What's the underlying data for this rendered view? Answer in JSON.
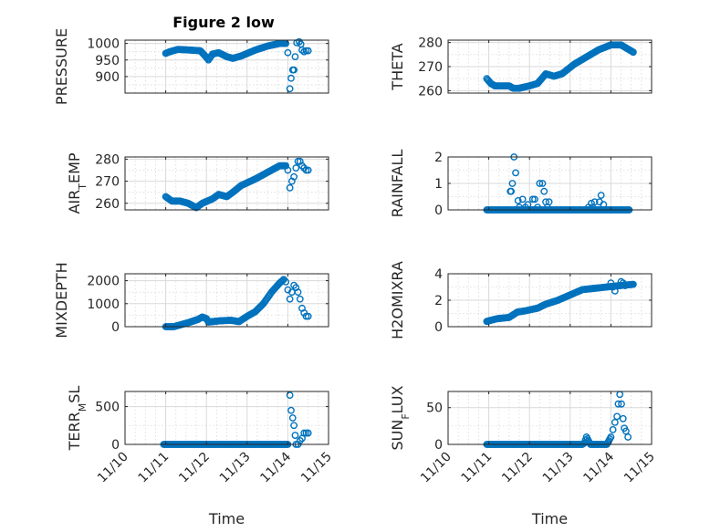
{
  "figure": {
    "title": "Figure 2 low",
    "marker_color": "#0072BD",
    "x_axis": {
      "label": "Time",
      "tick_values": [
        0,
        1,
        2,
        3,
        4,
        5
      ],
      "tick_labels": [
        "11/10",
        "11/11",
        "11/12",
        "11/13",
        "11/14",
        "11/15"
      ],
      "xlim": [
        0,
        5
      ]
    }
  },
  "chart_data": [
    {
      "type": "scatter",
      "ylabel": "PRESSURE",
      "ylim": [
        850,
        1010
      ],
      "yticks": [
        900,
        950,
        1000
      ],
      "yticklabels": [
        "900",
        "950",
        "1000"
      ],
      "minor_y": [
        875,
        925,
        975
      ],
      "anchors": [
        [
          1.0,
          970
        ],
        [
          1.1,
          975
        ],
        [
          1.3,
          982
        ],
        [
          1.6,
          980
        ],
        [
          1.85,
          978
        ],
        [
          2.0,
          958
        ],
        [
          2.05,
          950
        ],
        [
          2.15,
          968
        ],
        [
          2.3,
          972
        ],
        [
          2.5,
          960
        ],
        [
          2.65,
          955
        ],
        [
          2.85,
          962
        ],
        [
          3.2,
          980
        ],
        [
          3.5,
          992
        ],
        [
          3.8,
          1000
        ],
        [
          3.95,
          1000
        ]
      ],
      "extra_points": [
        [
          4.0,
          972
        ],
        [
          4.05,
          863
        ],
        [
          4.08,
          895
        ],
        [
          4.12,
          920
        ],
        [
          4.15,
          920
        ],
        [
          4.18,
          960
        ],
        [
          4.22,
          1002
        ],
        [
          4.28,
          1005
        ],
        [
          4.32,
          998
        ],
        [
          4.35,
          980
        ],
        [
          4.4,
          975
        ],
        [
          4.45,
          978
        ],
        [
          4.5,
          978
        ]
      ]
    },
    {
      "type": "scatter",
      "ylabel": "THETA",
      "ylim": [
        259,
        281
      ],
      "yticks": [
        260,
        270,
        280
      ],
      "yticklabels": [
        "260",
        "270",
        "280"
      ],
      "minor_y": [
        265,
        275
      ],
      "anchors": [
        [
          0.95,
          265
        ],
        [
          1.05,
          263
        ],
        [
          1.15,
          262
        ],
        [
          1.5,
          262
        ],
        [
          1.6,
          261
        ],
        [
          1.75,
          261
        ],
        [
          2.0,
          262
        ],
        [
          2.2,
          263
        ],
        [
          2.3,
          265
        ],
        [
          2.4,
          267
        ],
        [
          2.6,
          266
        ],
        [
          2.8,
          267
        ],
        [
          3.1,
          271
        ],
        [
          3.4,
          274
        ],
        [
          3.7,
          277
        ],
        [
          4.0,
          279
        ],
        [
          4.25,
          279
        ],
        [
          4.35,
          278
        ],
        [
          4.55,
          276
        ]
      ],
      "extra_points": []
    },
    {
      "type": "scatter",
      "ylabel": "AIR_TEMP",
      "ylim": [
        257,
        281
      ],
      "yticks": [
        260,
        270,
        280
      ],
      "yticklabels": [
        "260",
        "270",
        "280"
      ],
      "minor_y": [
        265,
        275
      ],
      "anchors": [
        [
          1.0,
          263
        ],
        [
          1.15,
          261
        ],
        [
          1.35,
          261
        ],
        [
          1.55,
          260
        ],
        [
          1.75,
          258
        ],
        [
          1.9,
          260
        ],
        [
          2.15,
          262
        ],
        [
          2.3,
          264
        ],
        [
          2.5,
          263
        ],
        [
          2.65,
          265
        ],
        [
          2.85,
          268
        ],
        [
          3.2,
          271
        ],
        [
          3.5,
          274
        ],
        [
          3.8,
          277
        ],
        [
          3.95,
          277
        ]
      ],
      "extra_points": [
        [
          4.0,
          275
        ],
        [
          4.05,
          267
        ],
        [
          4.1,
          270
        ],
        [
          4.15,
          272
        ],
        [
          4.2,
          276
        ],
        [
          4.25,
          279
        ],
        [
          4.3,
          279
        ],
        [
          4.35,
          277
        ],
        [
          4.4,
          276
        ],
        [
          4.45,
          275
        ],
        [
          4.5,
          275
        ]
      ]
    },
    {
      "type": "scatter",
      "ylabel": "RAINFALL",
      "ylim": [
        0,
        2
      ],
      "yticks": [
        0,
        1,
        2
      ],
      "yticklabels": [
        "0",
        "1",
        "2"
      ],
      "minor_y": [
        0.5,
        1.5
      ],
      "anchors": [
        [
          0.95,
          0
        ],
        [
          4.45,
          0
        ]
      ],
      "extra_points": [
        [
          1.53,
          0.7
        ],
        [
          1.55,
          0.7
        ],
        [
          1.58,
          1.0
        ],
        [
          1.62,
          2.0
        ],
        [
          1.66,
          1.4
        ],
        [
          1.72,
          0.35
        ],
        [
          1.75,
          0.1
        ],
        [
          1.83,
          0.4
        ],
        [
          1.9,
          0.1
        ],
        [
          1.96,
          0.2
        ],
        [
          2.08,
          0.4
        ],
        [
          2.13,
          0.4
        ],
        [
          2.2,
          0.1
        ],
        [
          2.25,
          1.0
        ],
        [
          2.32,
          1.0
        ],
        [
          2.36,
          0.7
        ],
        [
          2.4,
          0.3
        ],
        [
          2.44,
          0.1
        ],
        [
          2.48,
          0.3
        ],
        [
          3.45,
          0.1
        ],
        [
          3.52,
          0.25
        ],
        [
          3.55,
          0.1
        ],
        [
          3.6,
          0.3
        ],
        [
          3.72,
          0.3
        ],
        [
          3.76,
          0.55
        ],
        [
          3.82,
          0.2
        ]
      ]
    },
    {
      "type": "scatter",
      "ylabel": "MIXDEPTH",
      "ylim": [
        0,
        2300
      ],
      "yticks": [
        0,
        1000,
        2000
      ],
      "yticklabels": [
        "0",
        "1000",
        "2000"
      ],
      "minor_y": [
        500,
        1500
      ],
      "anchors": [
        [
          1.0,
          0
        ],
        [
          1.2,
          0
        ],
        [
          1.4,
          100
        ],
        [
          1.6,
          200
        ],
        [
          1.8,
          320
        ],
        [
          1.9,
          420
        ],
        [
          2.0,
          350
        ],
        [
          2.05,
          200
        ],
        [
          2.3,
          250
        ],
        [
          2.6,
          280
        ],
        [
          2.8,
          220
        ],
        [
          3.0,
          450
        ],
        [
          3.2,
          650
        ],
        [
          3.4,
          1000
        ],
        [
          3.6,
          1500
        ],
        [
          3.8,
          1900
        ],
        [
          3.9,
          2050
        ]
      ],
      "extra_points": [
        [
          3.95,
          1950
        ],
        [
          4.0,
          1600
        ],
        [
          4.05,
          1200
        ],
        [
          4.1,
          1500
        ],
        [
          4.15,
          1800
        ],
        [
          4.2,
          1700
        ],
        [
          4.25,
          1500
        ],
        [
          4.3,
          1200
        ],
        [
          4.35,
          800
        ],
        [
          4.4,
          600
        ],
        [
          4.45,
          450
        ],
        [
          4.5,
          450
        ]
      ]
    },
    {
      "type": "scatter",
      "ylabel": "H2OMIXRA",
      "ylim": [
        0,
        4
      ],
      "yticks": [
        0,
        2,
        4
      ],
      "yticklabels": [
        "0",
        "2",
        "4"
      ],
      "minor_y": [
        1,
        3
      ],
      "anchors": [
        [
          0.95,
          0.4
        ],
        [
          1.2,
          0.6
        ],
        [
          1.5,
          0.7
        ],
        [
          1.7,
          1.1
        ],
        [
          1.9,
          1.2
        ],
        [
          2.2,
          1.4
        ],
        [
          2.4,
          1.7
        ],
        [
          2.7,
          2.0
        ],
        [
          3.0,
          2.4
        ],
        [
          3.3,
          2.8
        ],
        [
          3.6,
          2.9
        ],
        [
          3.9,
          3.0
        ],
        [
          4.2,
          3.1
        ],
        [
          4.55,
          3.2
        ]
      ],
      "extra_points": [
        [
          4.0,
          3.3
        ],
        [
          4.05,
          3.0
        ],
        [
          4.1,
          2.7
        ],
        [
          4.2,
          3.1
        ],
        [
          4.25,
          3.4
        ],
        [
          4.3,
          3.3
        ],
        [
          4.35,
          3.1
        ]
      ]
    },
    {
      "type": "scatter",
      "ylabel": "TERR_MSL",
      "ylim": [
        0,
        700
      ],
      "yticks": [
        0,
        500
      ],
      "yticklabels": [
        "0",
        "500"
      ],
      "minor_y": [
        250
      ],
      "anchors": [
        [
          0.95,
          0
        ],
        [
          4.0,
          0
        ]
      ],
      "extra_points": [
        [
          4.05,
          650
        ],
        [
          4.08,
          450
        ],
        [
          4.12,
          350
        ],
        [
          4.15,
          250
        ],
        [
          4.18,
          120
        ],
        [
          4.2,
          0
        ],
        [
          4.25,
          0
        ],
        [
          4.3,
          50
        ],
        [
          4.35,
          80
        ],
        [
          4.4,
          150
        ],
        [
          4.45,
          150
        ],
        [
          4.5,
          150
        ]
      ]
    },
    {
      "type": "scatter",
      "ylabel": "SUN_FLUX",
      "ylim": [
        0,
        72
      ],
      "yticks": [
        0,
        50
      ],
      "yticklabels": [
        "0",
        "50"
      ],
      "minor_y": [
        25
      ],
      "anchors": [
        [
          0.95,
          0
        ],
        [
          3.3,
          0
        ],
        [
          3.35,
          2
        ],
        [
          3.4,
          10
        ],
        [
          3.45,
          5
        ],
        [
          3.5,
          0
        ],
        [
          3.9,
          0
        ],
        [
          4.0,
          10
        ]
      ],
      "extra_points": [
        [
          4.05,
          20
        ],
        [
          4.1,
          30
        ],
        [
          4.15,
          38
        ],
        [
          4.18,
          55
        ],
        [
          4.22,
          68
        ],
        [
          4.26,
          55
        ],
        [
          4.3,
          35
        ],
        [
          4.33,
          22
        ],
        [
          4.37,
          18
        ],
        [
          4.42,
          10
        ]
      ]
    }
  ]
}
